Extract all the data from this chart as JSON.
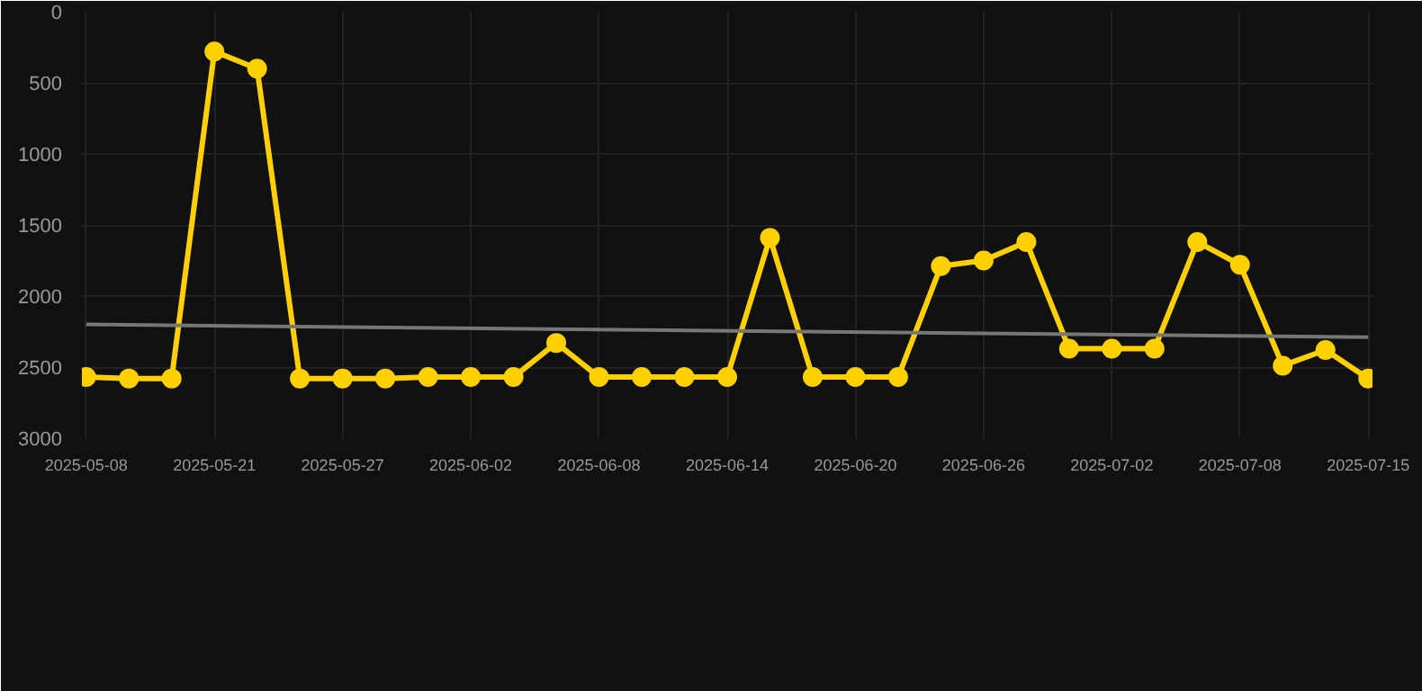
{
  "chart_data": {
    "type": "line",
    "categories": [
      "2025-05-08",
      null,
      null,
      "2025-05-21",
      null,
      null,
      "2025-05-27",
      null,
      null,
      "2025-06-02",
      null,
      null,
      "2025-06-08",
      null,
      null,
      "2025-06-14",
      null,
      null,
      "2025-06-20",
      null,
      null,
      "2025-06-26",
      null,
      null,
      "2025-07-02",
      null,
      null,
      "2025-07-08",
      null,
      null,
      "2025-07-15"
    ],
    "series": [
      {
        "color": "#ffd000",
        "values": [
          2570,
          2580,
          2580,
          280,
          400,
          2580,
          2580,
          2580,
          2570,
          2570,
          2570,
          2330,
          2570,
          2570,
          2570,
          2570,
          1590,
          2570,
          2570,
          2570,
          1790,
          1750,
          1620,
          2370,
          2370,
          2370,
          1620,
          1780,
          2490,
          2380,
          2580
        ],
        "marker": "circle"
      },
      {
        "color": "#777777",
        "values": [
          2200,
          null,
          null,
          null,
          null,
          null,
          null,
          null,
          null,
          null,
          null,
          null,
          null,
          null,
          null,
          null,
          null,
          null,
          null,
          null,
          null,
          null,
          null,
          null,
          null,
          null,
          null,
          null,
          null,
          null,
          2290
        ],
        "marker": "none"
      }
    ],
    "ylim": [
      3000,
      0
    ],
    "yticks": [
      0,
      500,
      1000,
      1500,
      2000,
      2500,
      3000
    ],
    "grid": true,
    "line_style": "solid"
  }
}
